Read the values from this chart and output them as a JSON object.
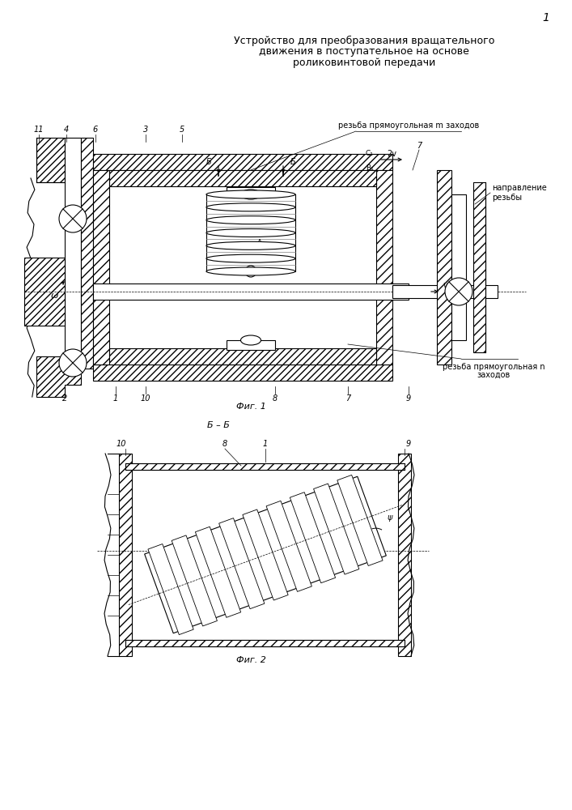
{
  "title_line1": "Устройство для преобразования вращательного",
  "title_line2": "движения в поступательное на основе",
  "title_line3": "роликовинтовой передачи",
  "page_number": "1",
  "fig1_caption": "Фиг. 1",
  "fig2_caption": "Фиг. 2",
  "section_label": "Б – Б",
  "bg_color": "#ffffff",
  "lw_main": 0.8,
  "lw_thin": 0.5,
  "lw_thick": 1.2
}
